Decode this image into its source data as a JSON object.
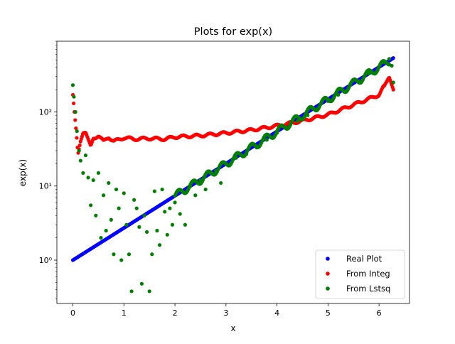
{
  "chart_data": {
    "type": "scatter",
    "title": "Plots for exp(x)",
    "xlabel": "x",
    "ylabel": "exp(x)",
    "xlim": [
      -0.314,
      6.597
    ],
    "ylim": [
      0.26,
      900
    ],
    "yscale": "log",
    "x_ticks": [
      0,
      1,
      2,
      3,
      4,
      5,
      6
    ],
    "y_major_ticks": [
      1,
      10,
      100
    ],
    "y_major_tick_labels": [
      "10⁰",
      "10¹",
      "10²"
    ],
    "grid": false,
    "legend_position": "lower-right",
    "series": [
      {
        "name": "Real Plot",
        "color": "#0000ff",
        "marker": "dot",
        "function": "exp(x)",
        "x_range": [
          0,
          6.28
        ],
        "x": [
          0.0,
          0.5,
          1.0,
          1.5,
          2.0,
          2.5,
          3.0,
          3.5,
          4.0,
          4.5,
          5.0,
          5.5,
          6.0,
          6.28
        ],
        "y": [
          1.0,
          1.65,
          2.72,
          4.48,
          7.39,
          12.2,
          20.1,
          33.1,
          54.6,
          90.0,
          148.4,
          244.7,
          403.4,
          533.5
        ]
      },
      {
        "name": "From Integ",
        "color": "#ff0000",
        "marker": "dot",
        "x": [
          0.0,
          0.03,
          0.06,
          0.1,
          0.15,
          0.2,
          0.25,
          0.3,
          0.35,
          0.4,
          0.5,
          0.6,
          0.7,
          0.8,
          1.0,
          1.2,
          1.5,
          1.8,
          2.0,
          2.5,
          3.0,
          3.5,
          4.0,
          4.5,
          5.0,
          5.5,
          6.0,
          6.2,
          6.28
        ],
        "y": [
          170,
          100,
          60,
          27,
          40,
          52,
          53,
          43,
          35,
          44,
          48,
          40,
          46,
          40,
          45,
          43,
          44,
          43,
          46,
          48,
          52,
          57,
          65,
          76,
          92,
          125,
          170,
          295,
          200
        ]
      },
      {
        "name": "From Lstsq",
        "color": "#008000",
        "marker": "dot",
        "x": [
          0.0,
          0.02,
          0.05,
          0.08,
          0.12,
          0.15,
          0.2,
          0.25,
          0.3,
          0.35,
          0.4,
          0.45,
          0.5,
          0.55,
          0.6,
          0.65,
          0.7,
          0.75,
          0.8,
          0.85,
          0.9,
          0.95,
          1.0,
          1.05,
          1.1,
          1.15,
          1.2,
          1.25,
          1.3,
          1.35,
          1.4,
          1.45,
          1.5,
          1.55,
          1.6,
          1.65,
          1.7,
          1.75,
          1.8,
          1.85,
          1.9,
          1.95,
          2.0,
          2.1,
          2.2,
          2.3,
          2.4,
          2.5,
          2.6,
          2.7,
          2.8,
          2.9,
          3.0,
          3.2,
          3.4,
          3.6,
          3.8,
          4.0,
          4.2,
          4.4,
          4.6,
          4.8,
          5.0,
          5.2,
          5.4,
          5.6,
          5.8,
          6.0,
          6.1,
          6.2,
          6.25,
          6.28
        ],
        "y": [
          230,
          160,
          100,
          55,
          30,
          22,
          15,
          26,
          13,
          5.5,
          12,
          4.0,
          15,
          2.0,
          7.5,
          2.5,
          11,
          3.5,
          1.2,
          9.0,
          5.0,
          1.0,
          8.0,
          3.0,
          1.2,
          0.38,
          6.5,
          5.0,
          2.8,
          0.48,
          4.0,
          2.4,
          0.38,
          1.2,
          8.5,
          2.5,
          1.6,
          9.0,
          4.5,
          2.2,
          5.0,
          3.0,
          6.0,
          4.2,
          3.0,
          10,
          7.5,
          12,
          9.0,
          15,
          16,
          11,
          20,
          24,
          27,
          33,
          42,
          52,
          61,
          75,
          90,
          110,
          140,
          170,
          210,
          260,
          330,
          410,
          470,
          520,
          420,
          250
        ]
      }
    ]
  }
}
